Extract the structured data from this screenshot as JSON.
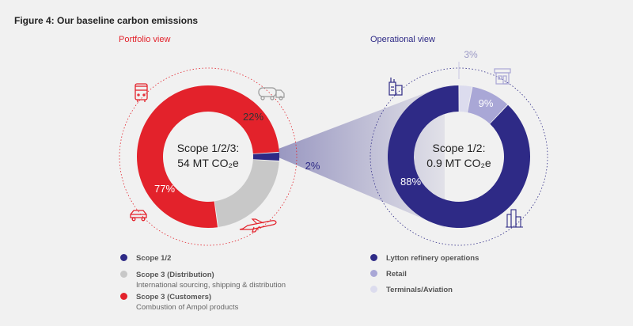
{
  "title": "Figure 4: Our baseline carbon emissions",
  "colors": {
    "scope12": "#2e2a86",
    "scope3_distribution": "#c8c8c8",
    "scope3_customers": "#e3222b",
    "lytton": "#2e2a86",
    "retail": "#a9a7d6",
    "terminals": "#dcdcee",
    "background": "#f1f1f1"
  },
  "chart_data": [
    {
      "type": "pie",
      "view_label": "Portfolio view",
      "center_label": [
        "Scope 1/2/3:",
        "54 MT CO₂e"
      ],
      "slices": [
        {
          "name": "Scope 1/2",
          "value": 2,
          "label": "2%",
          "color": "#2e2a86"
        },
        {
          "name": "Scope 3 (Distribution)",
          "value": 22,
          "label": "22%",
          "color": "#c8c8c8"
        },
        {
          "name": "Scope 3 (Customers)",
          "value": 77,
          "label": "77%",
          "color": "#e3222b"
        }
      ]
    },
    {
      "type": "pie",
      "view_label": "Operational view",
      "center_label": [
        "Scope 1/2:",
        "0.9 MT CO₂e"
      ],
      "slices": [
        {
          "name": "Lytton refinery operations",
          "value": 88,
          "label": "88%",
          "color": "#2e2a86"
        },
        {
          "name": "Retail",
          "value": 9,
          "label": "9%",
          "color": "#a9a7d6"
        },
        {
          "name": "Terminals/Aviation",
          "value": 3,
          "label": "3%",
          "color": "#dcdcee"
        }
      ]
    }
  ],
  "legend_portfolio": [
    {
      "label": "Scope 1/2",
      "sub": ""
    },
    {
      "label": "Scope 3 (Distribution)",
      "sub": "International sourcing, shipping & distribution"
    },
    {
      "label": "Scope 3 (Customers)",
      "sub": "Combustion of Ampol products"
    }
  ],
  "legend_operational": [
    {
      "label": "Lytton refinery operations"
    },
    {
      "label": "Retail"
    },
    {
      "label": "Terminals/Aviation"
    }
  ],
  "icons": [
    "bus-icon",
    "tanker-truck-icon",
    "car-icon",
    "airplane-icon",
    "refinery-icon",
    "retail-store-icon",
    "terminal-city-icon"
  ]
}
